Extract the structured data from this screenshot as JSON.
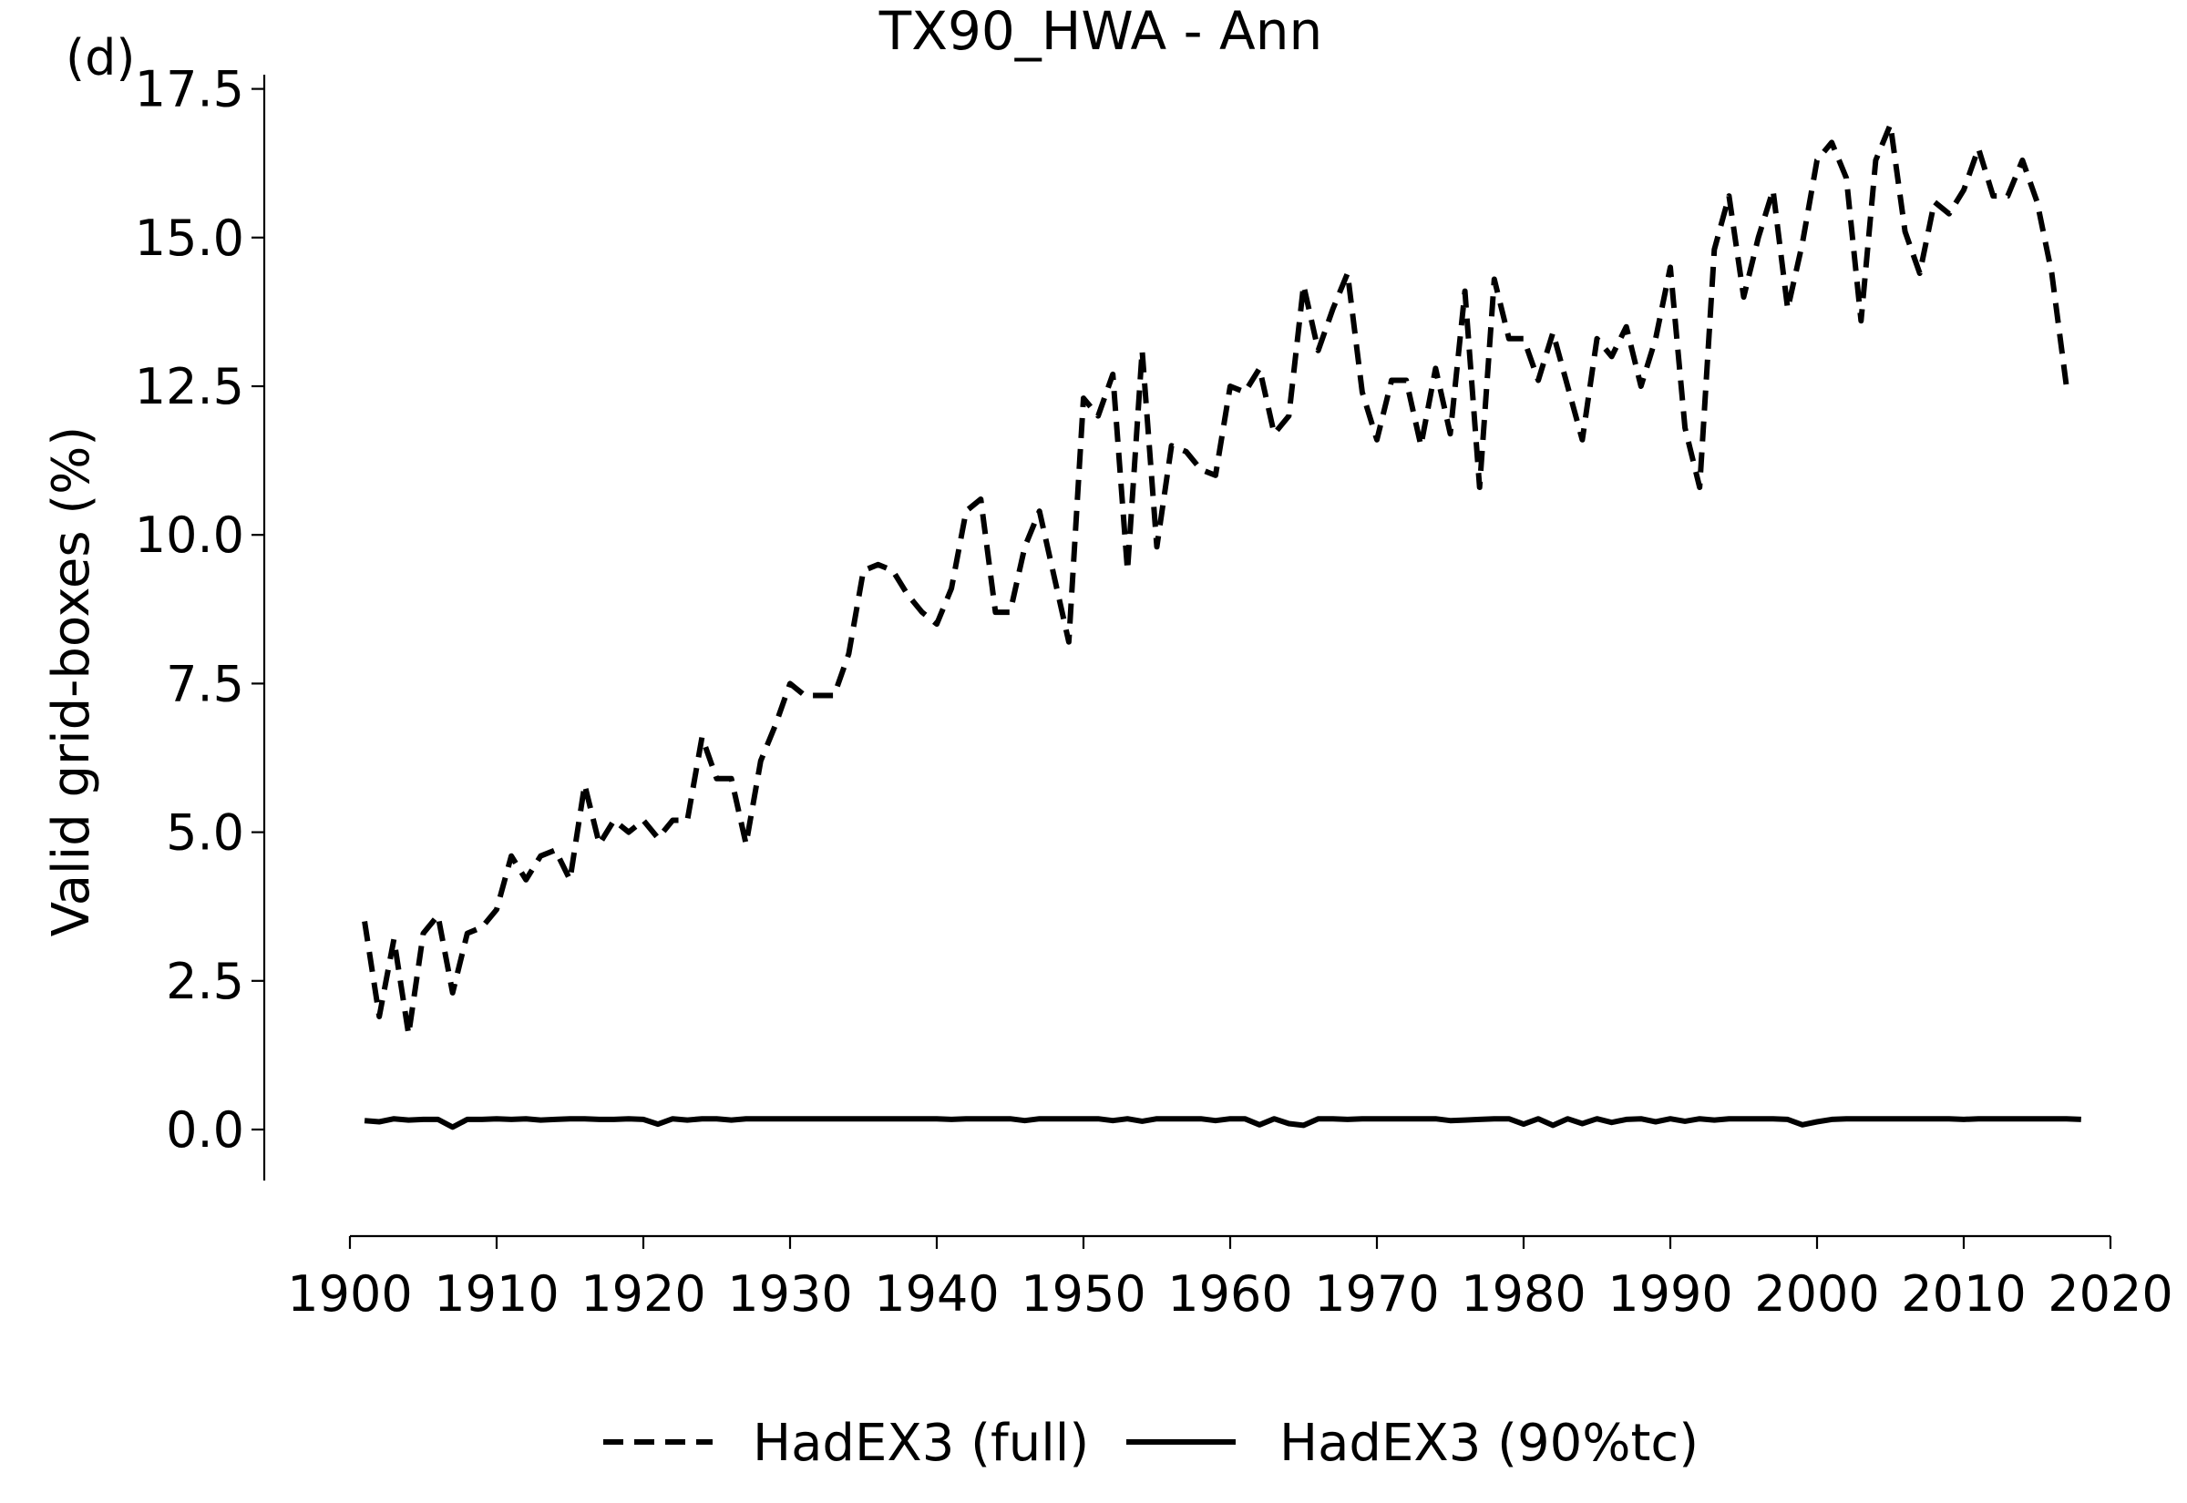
{
  "chart_data": {
    "type": "line",
    "title": "TX90_HWA - Ann",
    "panel_label": "(d)",
    "xlabel": "",
    "ylabel": "Valid grid-boxes (%)",
    "xlim": [
      1899,
      2020
    ],
    "ylim": [
      -0.8,
      17.8
    ],
    "x_ticks": [
      1900,
      1910,
      1920,
      1930,
      1940,
      1950,
      1960,
      1970,
      1980,
      1990,
      2000,
      2010,
      2020
    ],
    "y_ticks": [
      0.0,
      2.5,
      5.0,
      7.5,
      10.0,
      12.5,
      15.0,
      17.5
    ],
    "y_tick_labels": [
      "0.0",
      "2.5",
      "5.0",
      "7.5",
      "10.0",
      "12.5",
      "15.0",
      "17.5"
    ],
    "grid": false,
    "legend_position": "bottom-center",
    "x": [
      1901,
      1902,
      1903,
      1904,
      1905,
      1906,
      1907,
      1908,
      1909,
      1910,
      1911,
      1912,
      1913,
      1914,
      1915,
      1916,
      1917,
      1918,
      1919,
      1920,
      1921,
      1922,
      1923,
      1924,
      1925,
      1926,
      1927,
      1928,
      1929,
      1930,
      1931,
      1932,
      1933,
      1934,
      1935,
      1936,
      1937,
      1938,
      1939,
      1940,
      1941,
      1942,
      1943,
      1944,
      1945,
      1946,
      1947,
      1948,
      1949,
      1950,
      1951,
      1952,
      1953,
      1954,
      1955,
      1956,
      1957,
      1958,
      1959,
      1960,
      1961,
      1962,
      1963,
      1964,
      1965,
      1966,
      1967,
      1968,
      1969,
      1970,
      1971,
      1972,
      1973,
      1974,
      1975,
      1976,
      1977,
      1978,
      1979,
      1980,
      1981,
      1982,
      1983,
      1984,
      1985,
      1986,
      1987,
      1988,
      1989,
      1990,
      1991,
      1992,
      1993,
      1994,
      1995,
      1996,
      1997,
      1998,
      1999,
      2000,
      2001,
      2002,
      2003,
      2004,
      2005,
      2006,
      2007,
      2008,
      2009,
      2010,
      2011,
      2012,
      2013,
      2014,
      2015,
      2016,
      2017,
      2018
    ],
    "series": [
      {
        "name": "HadEX3 (full)",
        "style": "dashed",
        "color": "#000000",
        "values": [
          3.5,
          1.9,
          3.2,
          1.6,
          3.3,
          3.6,
          2.3,
          3.3,
          3.4,
          3.7,
          4.6,
          4.2,
          4.6,
          4.7,
          4.2,
          5.8,
          4.8,
          5.2,
          5.0,
          5.2,
          4.9,
          5.2,
          5.2,
          6.6,
          5.9,
          5.9,
          4.8,
          6.2,
          6.8,
          7.5,
          7.3,
          7.3,
          7.3,
          8.0,
          9.4,
          9.5,
          9.4,
          9.0,
          8.7,
          8.5,
          9.1,
          10.4,
          10.6,
          8.7,
          8.7,
          9.8,
          10.4,
          9.3,
          8.2,
          12.3,
          12.0,
          12.7,
          9.4,
          13.1,
          9.8,
          11.5,
          11.4,
          11.1,
          11.0,
          12.5,
          12.4,
          12.8,
          11.7,
          12.0,
          14.2,
          13.1,
          13.8,
          14.4,
          12.4,
          11.6,
          12.6,
          12.6,
          11.5,
          12.8,
          11.7,
          14.1,
          10.8,
          14.3,
          13.3,
          13.3,
          12.6,
          13.4,
          12.5,
          11.6,
          13.3,
          13.0,
          13.5,
          12.5,
          13.3,
          14.5,
          11.8,
          10.8,
          14.8,
          15.7,
          14.0,
          15.0,
          15.8,
          13.8,
          14.9,
          16.3,
          16.6,
          16.0,
          13.6,
          16.3,
          16.9,
          15.1,
          14.4,
          15.6,
          15.4,
          15.8,
          16.5,
          15.7,
          15.7,
          16.3,
          15.6,
          14.4,
          12.5,
          null
        ]
      },
      {
        "name": "HadEX3 (90%tc)",
        "style": "solid",
        "color": "#000000",
        "values": [
          0.15,
          0.13,
          0.18,
          0.16,
          0.17,
          0.17,
          0.04,
          0.17,
          0.17,
          0.18,
          0.17,
          0.18,
          0.16,
          0.17,
          0.18,
          0.18,
          0.17,
          0.17,
          0.18,
          0.17,
          0.09,
          0.18,
          0.16,
          0.18,
          0.18,
          0.16,
          0.18,
          0.18,
          0.18,
          0.18,
          0.18,
          0.18,
          0.18,
          0.18,
          0.18,
          0.18,
          0.18,
          0.18,
          0.18,
          0.18,
          0.17,
          0.18,
          0.18,
          0.18,
          0.18,
          0.15,
          0.18,
          0.18,
          0.18,
          0.18,
          0.18,
          0.15,
          0.18,
          0.14,
          0.18,
          0.18,
          0.18,
          0.18,
          0.15,
          0.18,
          0.18,
          0.08,
          0.18,
          0.1,
          0.07,
          0.18,
          0.18,
          0.17,
          0.18,
          0.18,
          0.18,
          0.18,
          0.18,
          0.18,
          0.15,
          0.16,
          0.17,
          0.18,
          0.18,
          0.09,
          0.18,
          0.07,
          0.18,
          0.1,
          0.18,
          0.12,
          0.17,
          0.18,
          0.13,
          0.18,
          0.14,
          0.18,
          0.16,
          0.18,
          0.18,
          0.18,
          0.18,
          0.17,
          0.08,
          0.13,
          0.17,
          0.18,
          0.18,
          0.18,
          0.18,
          0.18,
          0.18,
          0.18,
          0.18,
          0.17,
          0.18,
          0.18,
          0.18,
          0.18,
          0.18,
          0.18,
          0.18,
          0.17
        ]
      }
    ]
  }
}
